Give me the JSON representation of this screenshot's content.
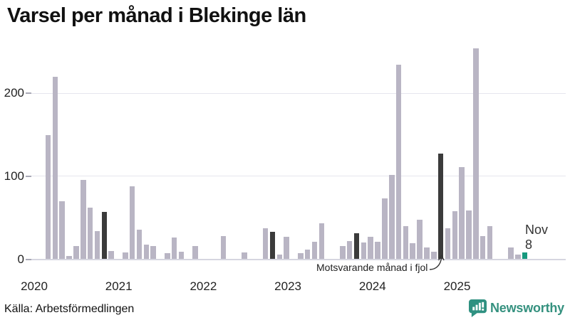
{
  "title": "Varsel per månad i Blekinge län",
  "source": "Källa: Arbetsförmedlingen",
  "brand": {
    "name": "Newsworthy"
  },
  "annotation": {
    "text": "Motsvarande månad i fjol"
  },
  "current_label": {
    "line1": "Nov",
    "line2": "8"
  },
  "colors": {
    "bar": "#b9b5c4",
    "highlight": "#3b3b3b",
    "current": "#16997e",
    "brand": "#35917f",
    "grid": "#e6e6ee",
    "axis": "#d6d6e0",
    "text": "#222222"
  },
  "chart_data": {
    "type": "bar",
    "title": "Varsel per månad i Blekinge län",
    "xlabel": "",
    "ylabel": "",
    "ylim": [
      0,
      260
    ],
    "grid": "horizontal",
    "legend": "none",
    "y_ticks": [
      0,
      100,
      200
    ],
    "x_ticks": [
      "2020",
      "2021",
      "2022",
      "2023",
      "2024",
      "2025"
    ],
    "series_note": "type: '' = normal gray bar, 'd' = dark bar (motsvarande månad i fjol), 't' = teal bar (current month Nov 2025, value 8)",
    "points": [
      [
        "2020-01",
        0,
        ""
      ],
      [
        "2020-02",
        0,
        ""
      ],
      [
        "2020-03",
        150,
        ""
      ],
      [
        "2020-04",
        220,
        ""
      ],
      [
        "2020-05",
        70,
        ""
      ],
      [
        "2020-06",
        4,
        ""
      ],
      [
        "2020-07",
        16,
        ""
      ],
      [
        "2020-08",
        96,
        ""
      ],
      [
        "2020-09",
        62,
        ""
      ],
      [
        "2020-10",
        34,
        ""
      ],
      [
        "2020-11",
        57,
        "d"
      ],
      [
        "2020-12",
        10,
        ""
      ],
      [
        "2021-01",
        0,
        ""
      ],
      [
        "2021-02",
        8,
        ""
      ],
      [
        "2021-03",
        88,
        ""
      ],
      [
        "2021-04",
        36,
        ""
      ],
      [
        "2021-05",
        18,
        ""
      ],
      [
        "2021-06",
        16,
        ""
      ],
      [
        "2021-07",
        0,
        ""
      ],
      [
        "2021-08",
        7,
        ""
      ],
      [
        "2021-09",
        26,
        ""
      ],
      [
        "2021-10",
        9,
        ""
      ],
      [
        "2021-11",
        0,
        ""
      ],
      [
        "2021-12",
        16,
        ""
      ],
      [
        "2022-01",
        0,
        ""
      ],
      [
        "2022-02",
        0,
        ""
      ],
      [
        "2022-03",
        0,
        ""
      ],
      [
        "2022-04",
        28,
        ""
      ],
      [
        "2022-05",
        0,
        ""
      ],
      [
        "2022-06",
        0,
        ""
      ],
      [
        "2022-07",
        8,
        ""
      ],
      [
        "2022-08",
        0,
        ""
      ],
      [
        "2022-09",
        0,
        ""
      ],
      [
        "2022-10",
        37,
        ""
      ],
      [
        "2022-11",
        33,
        "d"
      ],
      [
        "2022-12",
        6,
        ""
      ],
      [
        "2023-01",
        27,
        ""
      ],
      [
        "2023-02",
        0,
        ""
      ],
      [
        "2023-03",
        7,
        ""
      ],
      [
        "2023-04",
        12,
        ""
      ],
      [
        "2023-05",
        21,
        ""
      ],
      [
        "2023-06",
        43,
        ""
      ],
      [
        "2023-07",
        0,
        ""
      ],
      [
        "2023-08",
        0,
        ""
      ],
      [
        "2023-09",
        16,
        ""
      ],
      [
        "2023-10",
        22,
        ""
      ],
      [
        "2023-11",
        31,
        "d"
      ],
      [
        "2023-12",
        20,
        ""
      ],
      [
        "2024-01",
        27,
        ""
      ],
      [
        "2024-02",
        21,
        ""
      ],
      [
        "2024-03",
        73,
        ""
      ],
      [
        "2024-04",
        102,
        ""
      ],
      [
        "2024-05",
        235,
        ""
      ],
      [
        "2024-06",
        40,
        ""
      ],
      [
        "2024-07",
        19,
        ""
      ],
      [
        "2024-08",
        48,
        ""
      ],
      [
        "2024-09",
        14,
        ""
      ],
      [
        "2024-10",
        9,
        ""
      ],
      [
        "2024-11",
        127,
        "d"
      ],
      [
        "2024-12",
        37,
        ""
      ],
      [
        "2025-01",
        58,
        ""
      ],
      [
        "2025-02",
        111,
        ""
      ],
      [
        "2025-03",
        59,
        ""
      ],
      [
        "2025-04",
        254,
        ""
      ],
      [
        "2025-05",
        28,
        ""
      ],
      [
        "2025-06",
        40,
        ""
      ],
      [
        "2025-07",
        0,
        ""
      ],
      [
        "2025-08",
        0,
        ""
      ],
      [
        "2025-09",
        14,
        ""
      ],
      [
        "2025-10",
        6,
        ""
      ],
      [
        "2025-11",
        8,
        "t"
      ]
    ]
  }
}
